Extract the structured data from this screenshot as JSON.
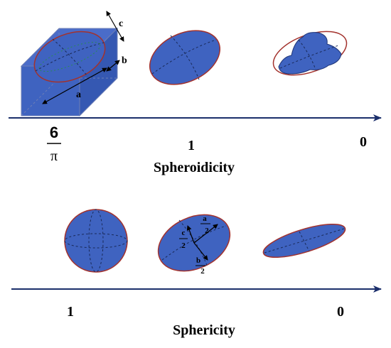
{
  "colors": {
    "fill": "#3f63c0",
    "outline": "#a3322d",
    "edge_dark": "#1f3577",
    "arrow": "#1b2f6b",
    "inner_dash": "#1a2a58",
    "box_edge": "#6d7fb6"
  },
  "top_axis": {
    "label": "Spheroidicity",
    "ticks": {
      "left_numerator": "6",
      "left_denominator": "π",
      "middle": "1",
      "right": "0"
    }
  },
  "bottom_axis": {
    "label": "Sphericity",
    "ticks": {
      "left": "1",
      "right": "0"
    }
  },
  "box_dimensions": {
    "a": "a",
    "b": "b",
    "c": "c"
  },
  "ellipsoid_labels": {
    "a_num": "a",
    "a_den": "2",
    "b_num": "b",
    "b_den": "2",
    "c_num": "c",
    "c_den": "2"
  }
}
